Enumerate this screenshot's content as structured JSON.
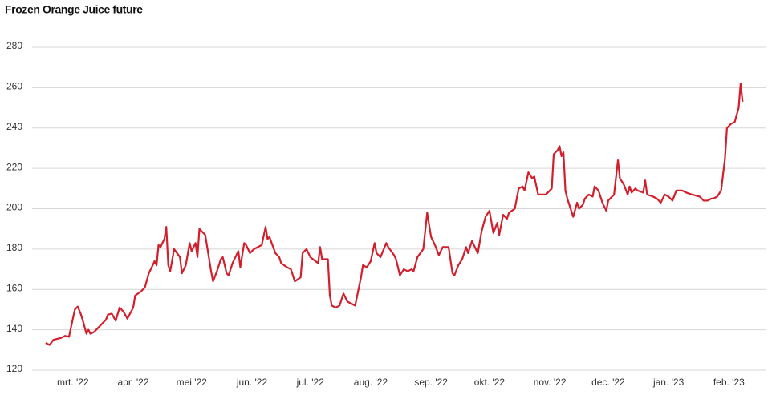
{
  "chart_data": {
    "type": "line",
    "title": "Frozen Orange Juice future",
    "x": [
      -14,
      -12,
      -10,
      -6,
      -4,
      -2,
      1,
      2.5,
      4,
      5,
      7,
      8,
      9,
      11,
      14,
      17,
      18,
      20,
      22,
      24,
      26,
      28,
      31,
      32,
      35,
      37,
      39,
      42,
      43,
      44,
      45,
      47,
      48,
      49,
      50,
      52,
      55,
      56,
      58,
      60,
      61,
      63,
      64,
      65,
      68,
      69,
      71,
      72,
      74,
      76,
      77,
      79,
      80,
      82,
      84,
      85,
      86,
      88,
      89,
      91,
      93,
      95,
      97,
      99,
      100,
      101,
      104,
      106,
      107,
      110,
      112,
      114,
      117,
      118,
      120,
      122,
      126,
      127,
      128,
      131,
      132,
      133,
      135,
      137,
      139,
      141,
      143,
      145,
      148,
      149,
      151,
      153,
      155,
      156,
      158,
      161,
      162,
      165,
      166,
      168,
      170,
      172,
      174,
      175,
      177,
      180,
      182,
      184,
      186,
      188,
      190,
      193,
      195,
      196,
      198,
      200,
      202,
      203,
      205,
      208,
      210,
      212,
      214,
      216,
      218,
      219,
      221,
      223,
      224,
      227,
      229,
      231,
      232,
      234,
      236,
      237,
      239,
      241,
      243,
      246,
      247,
      249,
      250,
      251,
      252,
      253,
      254,
      256,
      257,
      259,
      260,
      262,
      263,
      265,
      267,
      268,
      270,
      271,
      272,
      274,
      275,
      276,
      278,
      280,
      281,
      283,
      285,
      286,
      287,
      289,
      290,
      293,
      294,
      295,
      298,
      300,
      302,
      304,
      306,
      308,
      310,
      313,
      315,
      318,
      322,
      324,
      326,
      328,
      329,
      331,
      333,
      335,
      336,
      338,
      340,
      342,
      343,
      344
    ],
    "values": [
      133.5,
      132.5,
      135,
      136,
      137,
      136.5,
      150,
      151.5,
      148,
      145,
      138,
      140,
      138,
      139,
      142,
      145,
      147.5,
      148,
      144.5,
      151,
      149,
      145.5,
      151,
      157,
      159,
      161,
      168,
      174,
      172,
      182,
      181,
      185,
      191,
      172,
      169,
      180,
      176,
      168,
      172,
      183,
      179,
      183,
      176,
      190,
      187,
      181,
      169,
      164,
      169,
      175,
      176,
      168,
      167,
      173,
      177,
      179,
      171,
      183,
      182,
      178,
      180,
      181,
      182,
      191,
      185,
      186,
      178,
      176,
      173,
      171,
      170,
      164,
      166,
      178,
      180,
      176,
      173,
      181,
      175,
      175,
      157,
      152,
      151,
      152,
      158,
      154,
      153,
      152,
      166,
      172,
      171,
      174,
      183,
      178,
      176,
      183,
      181,
      177,
      175,
      167,
      170,
      169,
      170,
      169,
      176,
      180,
      198,
      186,
      182,
      177,
      181,
      181,
      168,
      167,
      172,
      175,
      181,
      178,
      184,
      178,
      189,
      196,
      199,
      188,
      193,
      187,
      197,
      195,
      198,
      200,
      210,
      211,
      209,
      218,
      215,
      216,
      207,
      207,
      207,
      210,
      227,
      229,
      231,
      226,
      228,
      209,
      205,
      199,
      196,
      203,
      200,
      202,
      205,
      207,
      206,
      211,
      209,
      206,
      203,
      199,
      204,
      205,
      207,
      224,
      215,
      212,
      207,
      211,
      208,
      210,
      209,
      208,
      214,
      207,
      206,
      205,
      203,
      207,
      206,
      204,
      209,
      209,
      208,
      207,
      206,
      204,
      204,
      205,
      205,
      206,
      209,
      225,
      240,
      242,
      243,
      250,
      262,
      253
    ],
    "color": "#d31f2c",
    "xlim": [
      -16,
      348
    ],
    "xticks": [
      {
        "value": 0,
        "label": "mrt. '22"
      },
      {
        "value": 31,
        "label": "apr. '22"
      },
      {
        "value": 61,
        "label": "mei '22"
      },
      {
        "value": 92,
        "label": "jun. '22"
      },
      {
        "value": 122,
        "label": "jul. '22"
      },
      {
        "value": 153,
        "label": "aug. '22"
      },
      {
        "value": 184,
        "label": "sep. '22"
      },
      {
        "value": 214,
        "label": "okt. '22"
      },
      {
        "value": 245,
        "label": "nov. '22"
      },
      {
        "value": 275,
        "label": "dec. '22"
      },
      {
        "value": 306,
        "label": "jan. '23"
      },
      {
        "value": 337,
        "label": "feb. '23"
      }
    ],
    "ylim": [
      120,
      280
    ],
    "yticks": [
      120,
      140,
      160,
      180,
      200,
      220,
      240,
      260,
      280
    ],
    "grid": true
  }
}
